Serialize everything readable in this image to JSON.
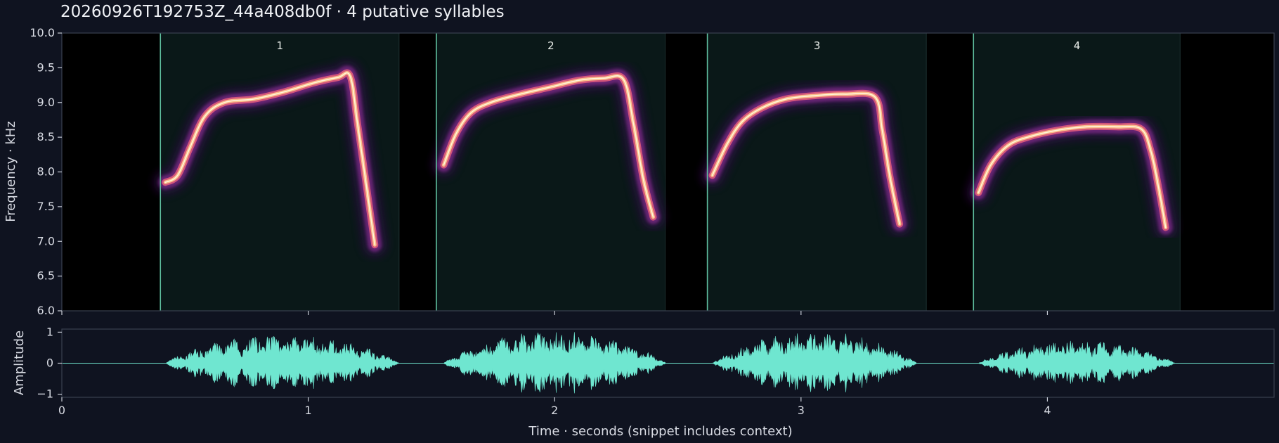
{
  "title": "20260926T192753Z_44a408db0f  ·  4 putative syllables",
  "colors": {
    "background": "#0f1320",
    "spectrogram_background": "#000000",
    "syllable_region": "#0a1818",
    "syllable_boundary": "#5fbf9f",
    "waveform": "#6fe6d0",
    "axis": "#c8ccd6",
    "panel_border": "#3a4050"
  },
  "chart_data": [
    {
      "type": "heatmap",
      "name": "spectrogram",
      "ylabel": "Frequency · kHz",
      "xlim": [
        0,
        4.92
      ],
      "ylim": [
        6.0,
        10.0
      ],
      "yticks": [
        "6.0",
        "6.5",
        "7.0",
        "7.5",
        "8.0",
        "8.5",
        "9.0",
        "9.5",
        "10.0"
      ],
      "syllable_labels": [
        "1",
        "2",
        "3",
        "4"
      ],
      "syllables": [
        {
          "label": "1",
          "start": 0.4,
          "end": 1.37,
          "contour": [
            [
              0.42,
              7.85
            ],
            [
              0.47,
              7.95
            ],
            [
              0.52,
              8.35
            ],
            [
              0.58,
              8.8
            ],
            [
              0.66,
              9.0
            ],
            [
              0.78,
              9.05
            ],
            [
              0.9,
              9.15
            ],
            [
              1.02,
              9.28
            ],
            [
              1.12,
              9.36
            ],
            [
              1.17,
              9.38
            ],
            [
              1.2,
              8.7
            ],
            [
              1.24,
              7.7
            ],
            [
              1.27,
              6.95
            ]
          ]
        },
        {
          "label": "2",
          "start": 1.52,
          "end": 2.45,
          "contour": [
            [
              1.55,
              8.1
            ],
            [
              1.6,
              8.55
            ],
            [
              1.66,
              8.85
            ],
            [
              1.74,
              9.0
            ],
            [
              1.86,
              9.12
            ],
            [
              1.98,
              9.22
            ],
            [
              2.1,
              9.32
            ],
            [
              2.2,
              9.35
            ],
            [
              2.28,
              9.33
            ],
            [
              2.32,
              8.7
            ],
            [
              2.36,
              7.9
            ],
            [
              2.4,
              7.35
            ]
          ]
        },
        {
          "label": "3",
          "start": 2.62,
          "end": 3.51,
          "contour": [
            [
              2.64,
              7.95
            ],
            [
              2.7,
              8.4
            ],
            [
              2.76,
              8.72
            ],
            [
              2.84,
              8.92
            ],
            [
              2.94,
              9.05
            ],
            [
              3.06,
              9.1
            ],
            [
              3.18,
              9.12
            ],
            [
              3.3,
              9.08
            ],
            [
              3.33,
              8.6
            ],
            [
              3.36,
              7.95
            ],
            [
              3.4,
              7.25
            ]
          ]
        },
        {
          "label": "4",
          "start": 3.7,
          "end": 4.54,
          "contour": [
            [
              3.72,
              7.7
            ],
            [
              3.77,
              8.1
            ],
            [
              3.84,
              8.38
            ],
            [
              3.92,
              8.5
            ],
            [
              4.04,
              8.6
            ],
            [
              4.16,
              8.65
            ],
            [
              4.28,
              8.65
            ],
            [
              4.38,
              8.62
            ],
            [
              4.42,
              8.3
            ],
            [
              4.45,
              7.8
            ],
            [
              4.48,
              7.2
            ]
          ]
        }
      ]
    },
    {
      "type": "line",
      "name": "waveform",
      "ylabel": "Amplitude",
      "xlabel": "Time · seconds (snippet includes context)",
      "xlim": [
        0,
        4.92
      ],
      "ylim": [
        -1.1,
        1.1
      ],
      "xticks": [
        {
          "value": 0,
          "label": "0"
        },
        {
          "value": 1,
          "label": "1"
        },
        {
          "value": 2,
          "label": "2"
        },
        {
          "value": 3,
          "label": "3"
        },
        {
          "value": 4,
          "label": "4"
        }
      ],
      "yticks": [
        {
          "value": -1,
          "label": "−1"
        },
        {
          "value": 0,
          "label": "0"
        },
        {
          "value": 1,
          "label": "1"
        }
      ],
      "segments": [
        {
          "start": 0.42,
          "end": 1.37,
          "peak": 0.92
        },
        {
          "start": 1.55,
          "end": 2.45,
          "peak": 1.0
        },
        {
          "start": 2.64,
          "end": 3.47,
          "peak": 1.0
        },
        {
          "start": 3.72,
          "end": 4.52,
          "peak": 0.72
        }
      ]
    }
  ]
}
